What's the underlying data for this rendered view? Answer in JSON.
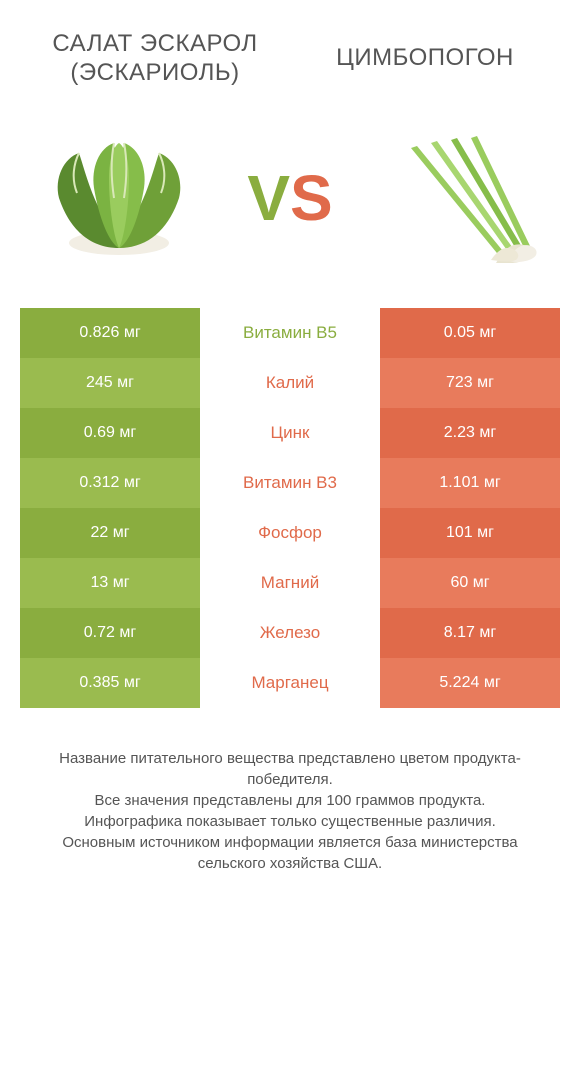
{
  "header": {
    "left_title": "САЛАТ ЭСКАРОЛ (ЭСКАРИОЛЬ)",
    "right_title": "ЦИМБОПОГОН",
    "vs_v": "V",
    "vs_s": "S"
  },
  "colors": {
    "green_dark": "#8aad3f",
    "green_light": "#9abb4f",
    "orange_dark": "#e06a4a",
    "orange_light": "#e87b5c",
    "mid_green_text": "#8aad3f",
    "mid_orange_text": "#e06a4a"
  },
  "table": {
    "rows": [
      {
        "left": "0.826 мг",
        "mid": "Витамин B5",
        "right": "0.05 мг",
        "winner": "left"
      },
      {
        "left": "245 мг",
        "mid": "Калий",
        "right": "723 мг",
        "winner": "right"
      },
      {
        "left": "0.69 мг",
        "mid": "Цинк",
        "right": "2.23 мг",
        "winner": "right"
      },
      {
        "left": "0.312 мг",
        "mid": "Витамин B3",
        "right": "1.101 мг",
        "winner": "right"
      },
      {
        "left": "22 мг",
        "mid": "Фосфор",
        "right": "101 мг",
        "winner": "right"
      },
      {
        "left": "13 мг",
        "mid": "Магний",
        "right": "60 мг",
        "winner": "right"
      },
      {
        "left": "0.72 мг",
        "mid": "Железо",
        "right": "8.17 мг",
        "winner": "right"
      },
      {
        "left": "0.385 мг",
        "mid": "Марганец",
        "right": "5.224 мг",
        "winner": "right"
      }
    ]
  },
  "footer": {
    "line1": "Название питательного вещества представлено цветом продукта-победителя.",
    "line2": "Все значения представлены для 100 граммов продукта.",
    "line3": "Инфографика показывает только существенные различия.",
    "line4": "Основным источником информации является база министерства сельского хозяйства США."
  }
}
